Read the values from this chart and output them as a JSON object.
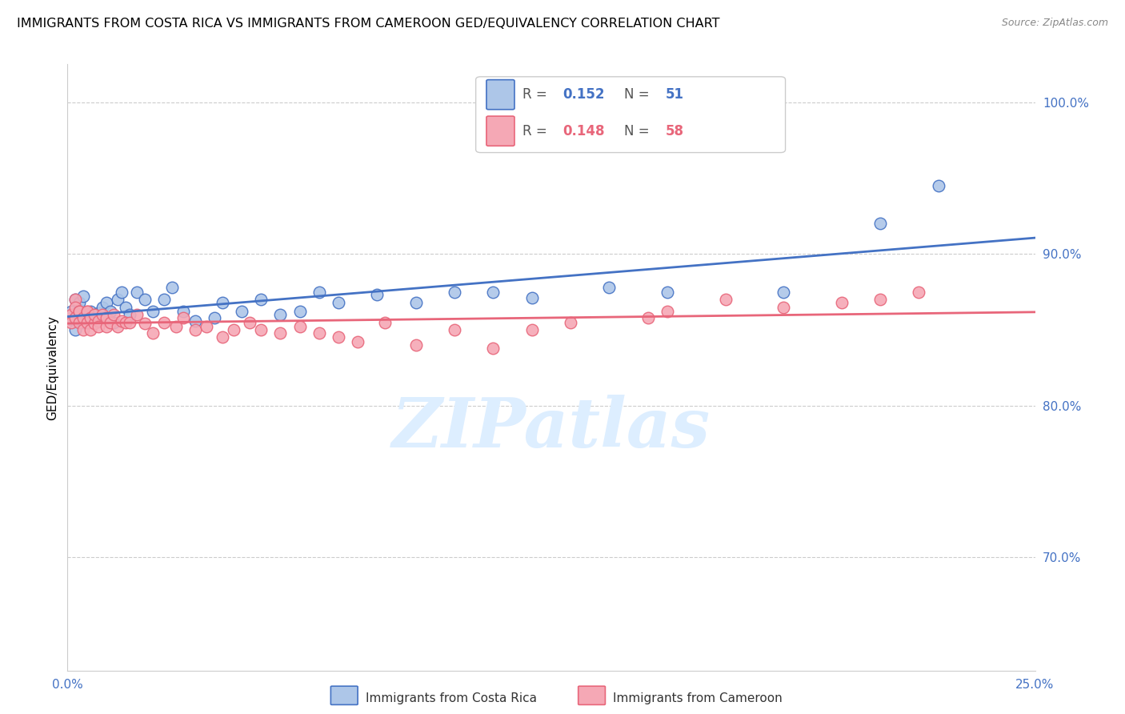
{
  "title": "IMMIGRANTS FROM COSTA RICA VS IMMIGRANTS FROM CAMEROON GED/EQUIVALENCY CORRELATION CHART",
  "source": "Source: ZipAtlas.com",
  "ylabel": "GED/Equivalency",
  "ytick_labels": [
    "100.0%",
    "90.0%",
    "80.0%",
    "70.0%"
  ],
  "ytick_values": [
    1.0,
    0.9,
    0.8,
    0.7
  ],
  "xlim": [
    0.0,
    0.25
  ],
  "ylim": [
    0.625,
    1.025
  ],
  "costa_rica_color": "#adc6e8",
  "cameroon_color": "#f5a8b5",
  "costa_rica_edge_color": "#4472c4",
  "cameroon_edge_color": "#e8667a",
  "costa_rica_label": "Immigrants from Costa Rica",
  "cameroon_label": "Immigrants from Cameroon",
  "r1": "0.152",
  "n1": "51",
  "r2": "0.148",
  "n2": "58",
  "r1_color": "#4472c4",
  "n1_color": "#4472c4",
  "r2_color": "#e8667a",
  "n2_color": "#e8667a",
  "tick_color": "#4472c4",
  "watermark": "ZIPatlas",
  "watermark_color": "#ddeeff",
  "costa_rica_x": [
    0.001,
    0.001,
    0.002,
    0.002,
    0.002,
    0.003,
    0.003,
    0.003,
    0.004,
    0.004,
    0.005,
    0.005,
    0.006,
    0.006,
    0.007,
    0.007,
    0.008,
    0.009,
    0.01,
    0.01,
    0.011,
    0.012,
    0.013,
    0.014,
    0.015,
    0.016,
    0.018,
    0.02,
    0.022,
    0.025,
    0.027,
    0.03,
    0.033,
    0.038,
    0.04,
    0.045,
    0.05,
    0.055,
    0.06,
    0.065,
    0.07,
    0.08,
    0.09,
    0.1,
    0.11,
    0.12,
    0.14,
    0.155,
    0.185,
    0.21,
    0.225
  ],
  "costa_rica_y": [
    0.857,
    0.862,
    0.87,
    0.85,
    0.858,
    0.856,
    0.863,
    0.868,
    0.855,
    0.872,
    0.86,
    0.855,
    0.858,
    0.862,
    0.857,
    0.855,
    0.861,
    0.865,
    0.868,
    0.858,
    0.862,
    0.855,
    0.87,
    0.875,
    0.865,
    0.86,
    0.875,
    0.87,
    0.862,
    0.87,
    0.878,
    0.862,
    0.856,
    0.858,
    0.868,
    0.862,
    0.87,
    0.86,
    0.862,
    0.875,
    0.868,
    0.873,
    0.868,
    0.875,
    0.875,
    0.871,
    0.878,
    0.875,
    0.875,
    0.92,
    0.945
  ],
  "cameroon_x": [
    0.001,
    0.001,
    0.002,
    0.002,
    0.002,
    0.003,
    0.003,
    0.003,
    0.004,
    0.004,
    0.005,
    0.005,
    0.005,
    0.006,
    0.006,
    0.007,
    0.007,
    0.008,
    0.008,
    0.009,
    0.01,
    0.01,
    0.011,
    0.012,
    0.013,
    0.014,
    0.015,
    0.016,
    0.018,
    0.02,
    0.022,
    0.025,
    0.028,
    0.03,
    0.033,
    0.036,
    0.04,
    0.043,
    0.047,
    0.05,
    0.055,
    0.06,
    0.065,
    0.07,
    0.075,
    0.082,
    0.09,
    0.1,
    0.11,
    0.12,
    0.13,
    0.15,
    0.155,
    0.17,
    0.185,
    0.2,
    0.21,
    0.22
  ],
  "cameroon_y": [
    0.86,
    0.855,
    0.87,
    0.865,
    0.858,
    0.862,
    0.855,
    0.862,
    0.85,
    0.858,
    0.862,
    0.855,
    0.862,
    0.85,
    0.858,
    0.854,
    0.86,
    0.856,
    0.852,
    0.86,
    0.852,
    0.858,
    0.855,
    0.86,
    0.852,
    0.856,
    0.855,
    0.855,
    0.86,
    0.854,
    0.848,
    0.855,
    0.852,
    0.858,
    0.85,
    0.852,
    0.845,
    0.85,
    0.855,
    0.85,
    0.848,
    0.852,
    0.848,
    0.845,
    0.842,
    0.855,
    0.84,
    0.85,
    0.838,
    0.85,
    0.855,
    0.858,
    0.862,
    0.87,
    0.865,
    0.868,
    0.87,
    0.875
  ],
  "title_fontsize": 11.5,
  "source_fontsize": 9,
  "tick_fontsize": 11,
  "ylabel_fontsize": 11,
  "legend_fontsize": 12
}
